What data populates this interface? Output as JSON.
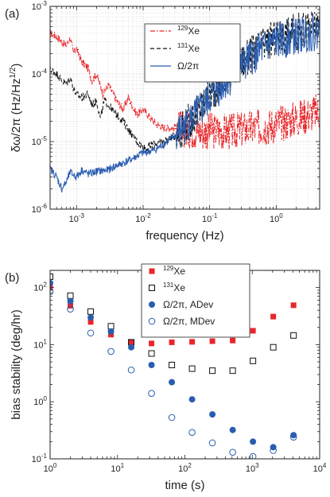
{
  "chart_data": [
    {
      "panel": "(a)",
      "type": "line",
      "xscale": "log",
      "yscale": "log",
      "xlabel": "frequency (Hz)",
      "ylabel": "δω/2π (Hz/Hz^1/2)",
      "xlim": [
        0.0004,
        4.5
      ],
      "ylim": [
        1e-06,
        0.001
      ],
      "x_ticks": [
        "10^-3",
        "10^-2",
        "10^-1",
        "10^0"
      ],
      "y_ticks": [
        "10^-6",
        "10^-5",
        "10^-4",
        "10^-3"
      ],
      "grid": true,
      "legend_position": "top-right",
      "series": [
        {
          "name": "129Xe",
          "color": "#e8262a",
          "style": "dash-dot",
          "points": [
            [
              0.0004,
              0.0004
            ],
            [
              0.0005,
              0.00036
            ],
            [
              0.0006,
              0.0003
            ],
            [
              0.0007,
              0.00026
            ],
            [
              0.0008,
              0.00034
            ],
            [
              0.0009,
              0.0002
            ],
            [
              0.001,
              0.00024
            ],
            [
              0.0012,
              0.00015
            ],
            [
              0.0015,
              0.00012
            ],
            [
              0.0017,
              8e-05
            ],
            [
              0.002,
              0.0001
            ],
            [
              0.0025,
              5e-05
            ],
            [
              0.003,
              7e-05
            ],
            [
              0.004,
              4e-05
            ],
            [
              0.005,
              3e-05
            ],
            [
              0.006,
              4.5e-05
            ],
            [
              0.008,
              2.5e-05
            ],
            [
              0.01,
              3e-05
            ],
            [
              0.013,
              2.2e-05
            ],
            [
              0.016,
              1.8e-05
            ],
            [
              0.02,
              1.6e-05
            ],
            [
              0.03,
              1.6e-05
            ],
            [
              0.05,
              1.5e-05
            ],
            [
              0.08,
              1.4e-05
            ],
            [
              0.1,
              1.45e-05
            ],
            [
              0.2,
              1.4e-05
            ],
            [
              0.3,
              1.5e-05
            ],
            [
              0.5,
              1.6e-05
            ],
            [
              0.8,
              1.7e-05
            ],
            [
              1.0,
              1.8e-05
            ],
            [
              1.5,
              2e-05
            ],
            [
              2.0,
              2.2e-05
            ],
            [
              3.0,
              2.5e-05
            ],
            [
              4.5,
              2.8e-05
            ]
          ]
        },
        {
          "name": "131Xe",
          "color": "#111111",
          "style": "dashed",
          "points": [
            [
              0.0004,
              0.00012
            ],
            [
              0.0005,
              0.0001
            ],
            [
              0.0006,
              8e-05
            ],
            [
              0.0007,
              7e-05
            ],
            [
              0.0008,
              9e-05
            ],
            [
              0.0009,
              6e-05
            ],
            [
              0.001,
              5e-05
            ],
            [
              0.0012,
              4.5e-05
            ],
            [
              0.0015,
              5e-05
            ],
            [
              0.0017,
              3.5e-05
            ],
            [
              0.002,
              4e-05
            ],
            [
              0.0023,
              2.2e-05
            ],
            [
              0.0026,
              4e-05
            ],
            [
              0.003,
              3.5e-05
            ],
            [
              0.004,
              2.5e-05
            ],
            [
              0.005,
              2e-05
            ],
            [
              0.007,
              1.2e-05
            ],
            [
              0.009,
              9e-06
            ],
            [
              0.011,
              8e-06
            ],
            [
              0.014,
              9e-06
            ],
            [
              0.02,
              1e-05
            ],
            [
              0.03,
              1.2e-05
            ],
            [
              0.05,
              2e-05
            ],
            [
              0.08,
              3.5e-05
            ],
            [
              0.1,
              5e-05
            ],
            [
              0.2,
              0.0001
            ],
            [
              0.3,
              0.00015
            ],
            [
              0.5,
              0.00022
            ],
            [
              0.8,
              0.0003
            ],
            [
              1.0,
              0.00034
            ],
            [
              2.0,
              0.00042
            ],
            [
              3.0,
              0.00046
            ],
            [
              4.5,
              0.0005
            ]
          ]
        },
        {
          "name": "Ω/2π",
          "color": "#2a5db0",
          "style": "solid",
          "points": [
            [
              0.0004,
              4e-06
            ],
            [
              0.0005,
              3e-06
            ],
            [
              0.0006,
              2e-06
            ],
            [
              0.0007,
              2.5e-06
            ],
            [
              0.0008,
              3.5e-06
            ],
            [
              0.001,
              3e-06
            ],
            [
              0.0012,
              3.8e-06
            ],
            [
              0.0015,
              3.3e-06
            ],
            [
              0.002,
              3.6e-06
            ],
            [
              0.003,
              3.8e-06
            ],
            [
              0.004,
              4.4e-06
            ],
            [
              0.005,
              4.8e-06
            ],
            [
              0.007,
              5.6e-06
            ],
            [
              0.009,
              6.5e-06
            ],
            [
              0.01,
              6.8e-06
            ],
            [
              0.015,
              7.5e-06
            ],
            [
              0.02,
              9e-06
            ],
            [
              0.03,
              1.2e-05
            ],
            [
              0.05,
              2e-05
            ],
            [
              0.08,
              3.2e-05
            ],
            [
              0.1,
              4.5e-05
            ],
            [
              0.2,
              9e-05
            ],
            [
              0.3,
              0.00013
            ],
            [
              0.5,
              0.0002
            ],
            [
              0.8,
              0.00028
            ],
            [
              1.0,
              0.0003
            ],
            [
              2.0,
              0.00036
            ],
            [
              3.0,
              0.0004
            ],
            [
              4.5,
              0.00042
            ]
          ]
        }
      ]
    },
    {
      "panel": "(b)",
      "type": "scatter",
      "xscale": "log",
      "yscale": "log",
      "xlabel": "time (s)",
      "ylabel": "bias stability (deg/hr)",
      "xlim": [
        1,
        10000
      ],
      "ylim": [
        0.1,
        200
      ],
      "x_ticks": [
        "10^0",
        "10^1",
        "10^2",
        "10^3",
        "10^4"
      ],
      "y_ticks": [
        "10^-1",
        "10^0",
        "10^1",
        "10^2"
      ],
      "grid": false,
      "legend_position": "top-right",
      "series": [
        {
          "name": "129Xe",
          "color": "#e8262a",
          "marker": "filled-square",
          "points": [
            [
              1,
              100
            ],
            [
              2,
              48
            ],
            [
              4,
              25
            ],
            [
              8,
              15
            ],
            [
              16,
              11
            ],
            [
              32,
              10.5
            ],
            [
              64,
              11
            ],
            [
              128,
              11.2
            ],
            [
              256,
              11.5
            ],
            [
              512,
              11.8
            ],
            [
              1024,
              17.5
            ],
            [
              2048,
              31
            ],
            [
              4096,
              49
            ]
          ]
        },
        {
          "name": "131Xe",
          "color": "#111111",
          "marker": "open-square",
          "points": [
            [
              1,
              155
            ],
            [
              2,
              72
            ],
            [
              4,
              38
            ],
            [
              8,
              21
            ],
            [
              16,
              11
            ],
            [
              32,
              7
            ],
            [
              64,
              4.4
            ],
            [
              128,
              3.8
            ],
            [
              256,
              3.5
            ],
            [
              512,
              3.5
            ],
            [
              1024,
              5.2
            ],
            [
              2048,
              9
            ],
            [
              4096,
              14.5
            ]
          ]
        },
        {
          "name": "Ω/2π, ADev",
          "color": "#2a5db0",
          "marker": "filled-circle",
          "points": [
            [
              1,
              120
            ],
            [
              2,
              58
            ],
            [
              4,
              30
            ],
            [
              8,
              17
            ],
            [
              16,
              9
            ],
            [
              32,
              4.4
            ],
            [
              64,
              2.2
            ],
            [
              128,
              1.1
            ],
            [
              256,
              0.6
            ],
            [
              512,
              0.32
            ],
            [
              1024,
              0.2
            ],
            [
              2048,
              0.16
            ],
            [
              4096,
              0.26
            ]
          ]
        },
        {
          "name": "Ω/2π, MDev",
          "color": "#2a5db0",
          "marker": "open-circle",
          "points": [
            [
              1,
              85
            ],
            [
              2,
              42
            ],
            [
              4,
              16
            ],
            [
              8,
              7.6
            ],
            [
              16,
              3.6
            ],
            [
              32,
              1.4
            ],
            [
              64,
              0.53
            ],
            [
              128,
              0.29
            ],
            [
              256,
              0.19
            ],
            [
              512,
              0.13
            ],
            [
              1024,
              0.11
            ],
            [
              2048,
              0.14
            ],
            [
              4096,
              0.24
            ]
          ]
        }
      ]
    }
  ],
  "legend_labels_a": [
    {
      "sup": "129",
      "text": "Xe"
    },
    {
      "sup": "131",
      "text": "Xe"
    },
    {
      "sup": "",
      "text": "Ω/2π"
    }
  ],
  "legend_labels_b": [
    {
      "sup": "129",
      "text": "Xe"
    },
    {
      "sup": "131",
      "text": "Xe"
    },
    {
      "sup": "",
      "text": "Ω/2π, ADev"
    },
    {
      "sup": "",
      "text": "Ω/2π, MDev"
    }
  ],
  "panel_labels": [
    "(a)",
    "(b)"
  ]
}
